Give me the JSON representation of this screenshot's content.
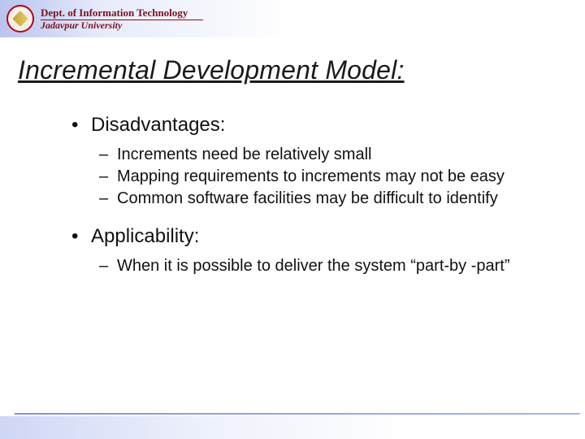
{
  "header": {
    "dept_line1": "Dept. of Information Technology",
    "dept_line2": "Jadavpur University"
  },
  "title": "Incremental Development Model:",
  "sections": [
    {
      "heading": "Disadvantages:",
      "items": [
        "Increments need be relatively small",
        "Mapping requirements to increments may not be easy",
        "Common software facilities may be difficult to identify"
      ]
    },
    {
      "heading": "Applicability:",
      "items": [
        "When it is possible to deliver the system “part-by -part”"
      ]
    }
  ],
  "colors": {
    "brand_text": "#7a1020",
    "title_text": "#1a1a1a",
    "body_text": "#111111",
    "grad_left": "#b9c4ef",
    "footer_line": "#8a9ce4",
    "background": "#ffffff"
  },
  "typography": {
    "title_fontsize": 32,
    "l1_fontsize": 24,
    "l2_fontsize": 20,
    "dept_fontsize": 13
  },
  "bullets": {
    "level1": "•",
    "level2": "–"
  }
}
